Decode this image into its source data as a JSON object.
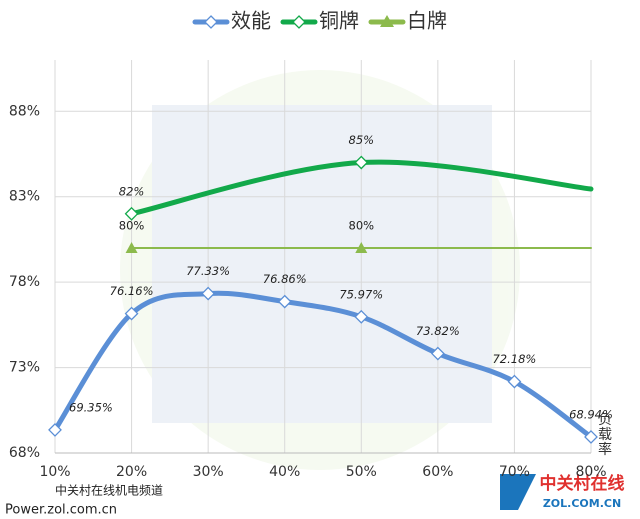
{
  "chart_data": {
    "type": "line",
    "xlabel": "负载率",
    "xlim": [
      10,
      80
    ],
    "xticks": [
      {
        "value": 10,
        "label": "10%"
      },
      {
        "value": 20,
        "label": "20%"
      },
      {
        "value": 30,
        "label": "30%"
      },
      {
        "value": 40,
        "label": "40%"
      },
      {
        "value": 50,
        "label": "50%"
      },
      {
        "value": 60,
        "label": "60%"
      },
      {
        "value": 70,
        "label": "70%"
      },
      {
        "value": 80,
        "label": "80%"
      }
    ],
    "ylim": [
      68,
      91
    ],
    "yticks": [
      {
        "value": 68,
        "label": "68%"
      },
      {
        "value": 73,
        "label": "73%"
      },
      {
        "value": 78,
        "label": "78%"
      },
      {
        "value": 83,
        "label": "83%"
      },
      {
        "value": 88,
        "label": "88%"
      }
    ],
    "grid": true,
    "legend": "top",
    "series": [
      {
        "name": "效能",
        "color": "#5b8fd6",
        "marker": "diamond",
        "x": [
          10,
          20,
          30,
          40,
          50,
          60,
          70,
          80
        ],
        "values": [
          69.35,
          76.16,
          77.33,
          76.86,
          75.97,
          73.82,
          72.18,
          68.94
        ],
        "value_labels": [
          "69.35%",
          "76.16%",
          "77.33%",
          "76.86%",
          "75.97%",
          "73.82%",
          "72.18%",
          "68.94%"
        ]
      },
      {
        "name": "铜牌",
        "color": "#12a94a",
        "marker": "diamond",
        "x": [
          20,
          50,
          80
        ],
        "values": [
          82,
          85,
          83.45
        ],
        "value_labels": [
          "82%",
          "85%",
          null
        ]
      },
      {
        "name": "白牌",
        "color": "#8cba4c",
        "marker": "triangle",
        "x": [
          20,
          50,
          80
        ],
        "values": [
          80,
          80,
          80
        ],
        "value_labels": [
          "80%",
          "80%",
          null
        ]
      }
    ],
    "watermark": {
      "line1": "中关村在线机电频道",
      "line2": "Power.zol.com.cn",
      "logo": "中关村在线",
      "logo_sub": "ZOL.COM.CN"
    }
  }
}
